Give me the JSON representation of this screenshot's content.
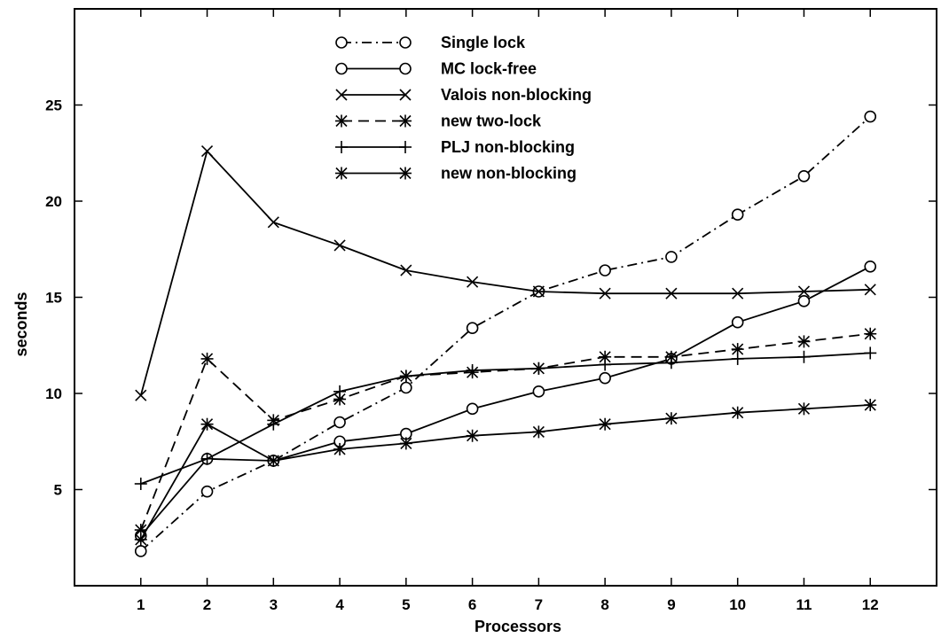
{
  "chart_data": {
    "type": "line",
    "title": "",
    "xlabel": "Processors",
    "ylabel": "seconds",
    "xlim": [
      0,
      13
    ],
    "ylim": [
      0,
      30
    ],
    "x": [
      1,
      2,
      3,
      4,
      5,
      6,
      7,
      8,
      9,
      10,
      11,
      12
    ],
    "xticks": [
      "1",
      "2",
      "3",
      "4",
      "5",
      "6",
      "7",
      "8",
      "9",
      "10",
      "11",
      "12"
    ],
    "yticks": [
      "5",
      "10",
      "15",
      "20",
      "25"
    ],
    "ytick_values": [
      5,
      10,
      15,
      20,
      25
    ],
    "grid": false,
    "legend_position": "top-center",
    "series": [
      {
        "name": "Single lock",
        "marker": "circle",
        "dash": "dash-dot",
        "values": [
          1.8,
          4.9,
          6.5,
          8.5,
          10.3,
          13.4,
          15.3,
          16.4,
          17.1,
          19.3,
          21.3,
          24.4
        ]
      },
      {
        "name": "MC lock-free",
        "marker": "circle",
        "dash": "solid",
        "values": [
          2.6,
          6.6,
          6.5,
          7.5,
          7.9,
          9.2,
          10.1,
          10.8,
          11.8,
          13.7,
          14.8,
          16.6
        ]
      },
      {
        "name": "Valois non-blocking",
        "marker": "x",
        "dash": "solid",
        "values": [
          9.9,
          22.6,
          18.9,
          17.7,
          16.4,
          15.8,
          15.3,
          15.2,
          15.2,
          15.2,
          15.3,
          15.4
        ]
      },
      {
        "name": "new two-lock",
        "marker": "star",
        "dash": "dashed",
        "values": [
          2.9,
          11.8,
          8.6,
          9.7,
          10.9,
          11.1,
          11.3,
          11.9,
          11.9,
          12.3,
          12.7,
          13.1
        ]
      },
      {
        "name": "PLJ non-blocking",
        "marker": "plus",
        "dash": "solid",
        "values": [
          5.3,
          6.6,
          8.4,
          10.1,
          10.9,
          11.2,
          11.3,
          11.5,
          11.6,
          11.8,
          11.9,
          12.1
        ]
      },
      {
        "name": "new non-blocking",
        "marker": "star",
        "dash": "solid",
        "values": [
          2.4,
          8.4,
          6.5,
          7.1,
          7.4,
          7.8,
          8.0,
          8.4,
          8.7,
          9.0,
          9.2,
          9.4
        ]
      }
    ]
  }
}
